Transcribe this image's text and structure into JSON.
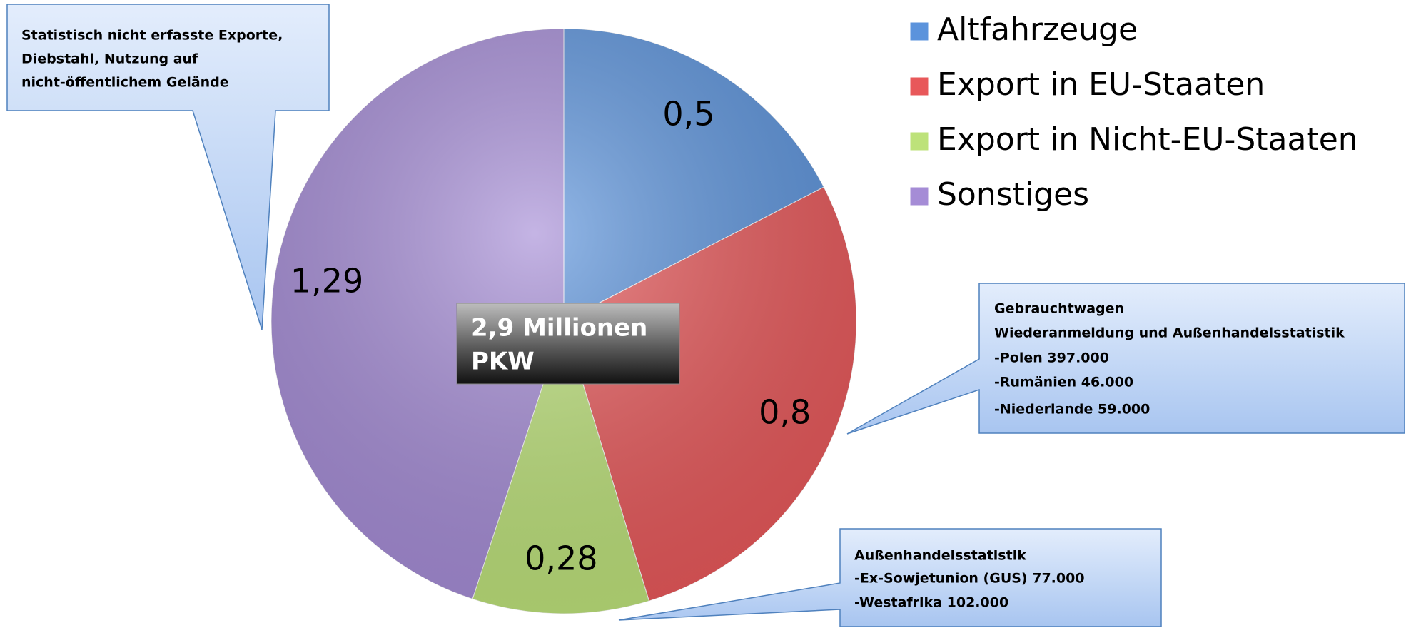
{
  "chart_data": {
    "type": "pie",
    "categories": [
      "Altfahrzeuge",
      "Export in EU-Staaten",
      "Export in Nicht-EU-Staaten",
      "Sonstiges"
    ],
    "values": [
      0.5,
      0.8,
      0.28,
      1.29
    ],
    "value_labels": [
      "0,5",
      "0,8",
      "0,28",
      "1,29"
    ],
    "colors": [
      "#5b93dc",
      "#e8585a",
      "#bde27a",
      "#a58cd6"
    ],
    "legend": "top-right",
    "center_label": [
      "2,9 Millionen",
      "PKW"
    ],
    "annotations": [
      {
        "lines": [
          "Statistisch nicht erfasste Exporte,",
          "Diebstahl, Nutzung auf",
          "nicht-öffentlichem Gelände"
        ]
      },
      {
        "lines": [
          "Gebrauchtwagen",
          "Wiederanmeldung und Außenhandelsstatistik",
          "-Polen 397.000",
          "-Rumänien 46.000",
          "-Niederlande 59.000"
        ]
      },
      {
        "lines": [
          "Außenhandelsstatistik",
          "-Ex-Sowjetunion (GUS) 77.000",
          "-Westafrika 102.000"
        ]
      }
    ]
  }
}
